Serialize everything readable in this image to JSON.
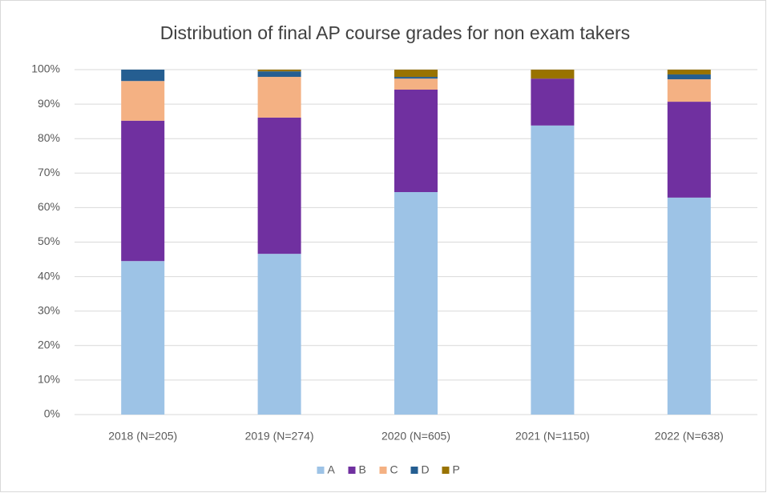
{
  "chart_data": {
    "type": "stacked_bar",
    "title": "Distribution of final AP course grades for non exam takers",
    "categories": [
      "2018 (N=205)",
      "2019 (N=274)",
      "2020 (N=605)",
      "2021 (N=1150)",
      "2022 (N=638)"
    ],
    "series": [
      {
        "name": "A",
        "color": "#9dc3e6",
        "values": [
          44.5,
          46.6,
          64.5,
          83.8,
          62.9
        ]
      },
      {
        "name": "B",
        "color": "#7030a0",
        "values": [
          40.7,
          39.5,
          29.7,
          13.6,
          27.8
        ]
      },
      {
        "name": "C",
        "color": "#f4b183",
        "values": [
          11.5,
          11.8,
          3.2,
          0,
          6.5
        ]
      },
      {
        "name": "D",
        "color": "#255e91",
        "values": [
          3.3,
          1.6,
          0.5,
          0,
          1.4
        ]
      },
      {
        "name": "P",
        "color": "#997300",
        "values": [
          0,
          0.5,
          2.1,
          2.6,
          1.4
        ]
      }
    ],
    "ylim": [
      0,
      100
    ],
    "yticks": [
      {
        "value": 0,
        "label": "0%"
      },
      {
        "value": 10,
        "label": "10%"
      },
      {
        "value": 20,
        "label": "20%"
      },
      {
        "value": 30,
        "label": "30%"
      },
      {
        "value": 40,
        "label": "40%"
      },
      {
        "value": 50,
        "label": "50%"
      },
      {
        "value": 60,
        "label": "60%"
      },
      {
        "value": 70,
        "label": "70%"
      },
      {
        "value": 80,
        "label": "80%"
      },
      {
        "value": 90,
        "label": "90%"
      },
      {
        "value": 100,
        "label": "100%"
      }
    ],
    "grid": true,
    "legend": "bottom"
  }
}
